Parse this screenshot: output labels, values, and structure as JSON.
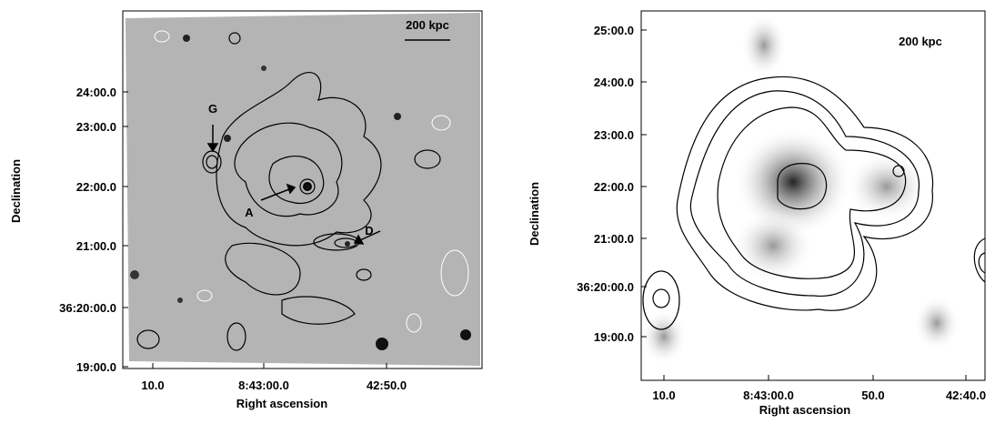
{
  "panels": [
    {
      "yticks": [
        "24:00.0",
        "23:00.0",
        "22:00.0",
        "21:00.0",
        "36:20:00.0",
        "19:00.0"
      ],
      "xticks": [
        "10.0",
        "8:43:00.0",
        "42:50.0"
      ],
      "xlabel": "Right ascension",
      "ylabel": "Declination",
      "scale_bar": "200 kpc",
      "annotations": [
        "G",
        "A",
        "D"
      ]
    },
    {
      "yticks": [
        "25:00.0",
        "24:00.0",
        "23:00.0",
        "22:00.0",
        "21:00.0",
        "36:20:00.0",
        "19:00.0"
      ],
      "xticks": [
        "10.0",
        "8:43:00.0",
        "50.0",
        "42:40.0"
      ],
      "xlabel": "Right ascension",
      "ylabel": "Declination",
      "scale_bar": "200 kpc"
    }
  ]
}
